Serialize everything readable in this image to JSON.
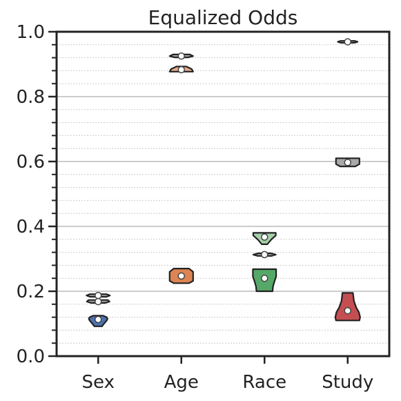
{
  "chart_data": {
    "type": "violin",
    "title": "Equalized Odds",
    "xlabel": "",
    "ylabel": "",
    "categories": [
      "Sex",
      "Age",
      "Race",
      "Study"
    ],
    "ylim": [
      0.0,
      1.0
    ],
    "yticks": [
      {
        "value": 0.0,
        "label": "0.0"
      },
      {
        "value": 0.2,
        "label": "0.2"
      },
      {
        "value": 0.4,
        "label": "0.4"
      },
      {
        "value": 0.6,
        "label": "0.6"
      },
      {
        "value": 0.8,
        "label": "0.8"
      },
      {
        "value": 1.0,
        "label": "1.0"
      }
    ],
    "grid": {
      "major": true,
      "minor": true,
      "minor_step": 0.04
    },
    "legend": "none",
    "series": [
      {
        "kind": "primary",
        "violins": [
          {
            "category": "Sex",
            "color": "#4c72b0",
            "median": 0.113,
            "min": 0.092,
            "max": 0.125,
            "profile": [
              [
                0.092,
                0.28
              ],
              [
                0.1,
                0.42
              ],
              [
                0.11,
                0.62
              ],
              [
                0.115,
                0.68
              ],
              [
                0.12,
                0.62
              ],
              [
                0.125,
                0.35
              ]
            ]
          },
          {
            "category": "Age",
            "color": "#dd8452",
            "median": 0.247,
            "min": 0.225,
            "max": 0.27,
            "profile": [
              [
                0.225,
                0.55
              ],
              [
                0.232,
                0.85
              ],
              [
                0.26,
                0.85
              ],
              [
                0.27,
                0.55
              ]
            ]
          },
          {
            "category": "Race",
            "color": "#55a868",
            "median": 0.24,
            "min": 0.2,
            "max": 0.268,
            "profile": [
              [
                0.2,
                0.58
              ],
              [
                0.215,
                0.62
              ],
              [
                0.23,
                0.72
              ],
              [
                0.245,
                0.84
              ],
              [
                0.268,
                0.84
              ]
            ]
          },
          {
            "category": "Study",
            "color": "#c44e52",
            "median": 0.14,
            "min": 0.11,
            "max": 0.195,
            "profile": [
              [
                0.11,
                0.85
              ],
              [
                0.12,
                0.9
              ],
              [
                0.135,
                0.82
              ],
              [
                0.15,
                0.62
              ],
              [
                0.17,
                0.45
              ],
              [
                0.195,
                0.38
              ]
            ]
          }
        ]
      },
      {
        "kind": "secondary",
        "violins": [
          {
            "category": "Sex",
            "color": "#a9a9a9",
            "median": 0.187,
            "min": 0.183,
            "max": 0.191,
            "profile": [
              [
                0.183,
                0.6
              ],
              [
                0.187,
                0.85
              ],
              [
                0.191,
                0.6
              ]
            ]
          },
          {
            "category": "Sex",
            "color": "#a9a9a9",
            "median": 0.168,
            "min": 0.164,
            "max": 0.173,
            "profile": [
              [
                0.164,
                0.5
              ],
              [
                0.168,
                0.82
              ],
              [
                0.173,
                0.7
              ]
            ]
          },
          {
            "category": "Age",
            "color": "#a9a9a9",
            "median": 0.925,
            "min": 0.921,
            "max": 0.93,
            "profile": [
              [
                0.921,
                0.5
              ],
              [
                0.925,
                0.85
              ],
              [
                0.93,
                0.6
              ]
            ]
          },
          {
            "category": "Age",
            "color": "#e3a987",
            "median": 0.883,
            "min": 0.877,
            "max": 0.893,
            "profile": [
              [
                0.877,
                0.85
              ],
              [
                0.885,
                0.75
              ],
              [
                0.893,
                0.35
              ]
            ]
          },
          {
            "category": "Race",
            "color": "#a4d1a9",
            "median": 0.367,
            "min": 0.345,
            "max": 0.38,
            "profile": [
              [
                0.345,
                0.2
              ],
              [
                0.36,
                0.5
              ],
              [
                0.372,
                0.82
              ],
              [
                0.38,
                0.82
              ]
            ]
          },
          {
            "category": "Race",
            "color": "#a9a9a9",
            "median": 0.313,
            "min": 0.309,
            "max": 0.317,
            "profile": [
              [
                0.309,
                0.5
              ],
              [
                0.313,
                0.82
              ],
              [
                0.317,
                0.45
              ]
            ]
          },
          {
            "category": "Study",
            "color": "#a9a9a9",
            "median": 0.969,
            "min": 0.966,
            "max": 0.972,
            "profile": [
              [
                0.966,
                0.5
              ],
              [
                0.969,
                0.72
              ],
              [
                0.972,
                0.5
              ]
            ]
          },
          {
            "category": "Study",
            "color": "#a9a9a9",
            "median": 0.597,
            "min": 0.585,
            "max": 0.61,
            "profile": [
              [
                0.585,
                0.55
              ],
              [
                0.592,
                0.85
              ],
              [
                0.61,
                0.85
              ]
            ]
          }
        ]
      }
    ]
  }
}
